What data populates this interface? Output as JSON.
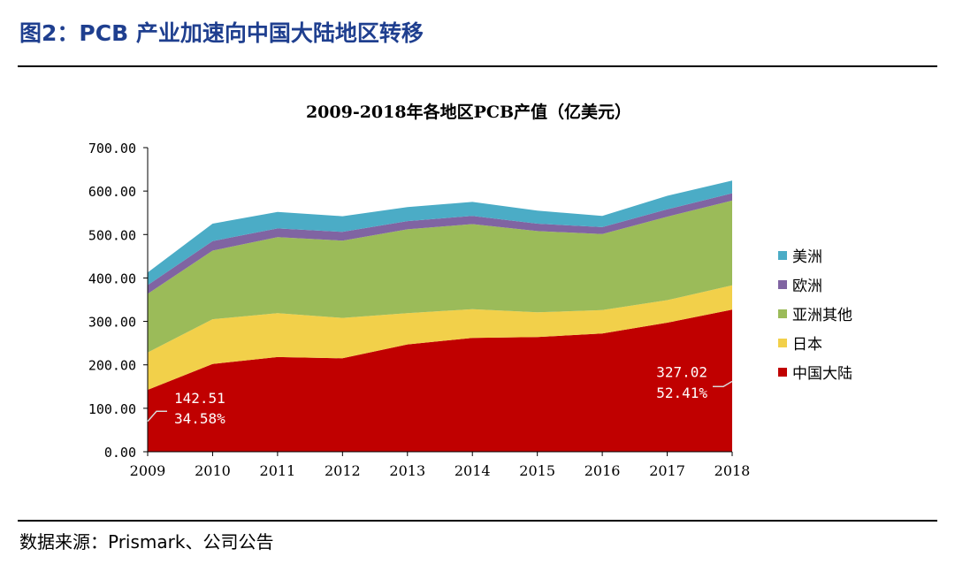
{
  "figure": {
    "title": "图2：PCB 产业加速向中国大陆地区转移",
    "source": "数据来源：Prismark、公司公告"
  },
  "chart_data": {
    "type": "area",
    "stacked": true,
    "title": "2009-2018年各地区PCB产值（亿美元）",
    "xlabel": "",
    "ylabel": "",
    "x": [
      "2009",
      "2010",
      "2011",
      "2012",
      "2013",
      "2014",
      "2015",
      "2016",
      "2017",
      "2018"
    ],
    "ylim": [
      0,
      700
    ],
    "yticks": [
      "0.00",
      "100.00",
      "200.00",
      "300.00",
      "400.00",
      "500.00",
      "600.00",
      "700.00"
    ],
    "legend_position": "right",
    "series": [
      {
        "name": "中国大陆",
        "color": "#c00000",
        "values": [
          142.51,
          202,
          218,
          215,
          247,
          262,
          264,
          272,
          297,
          327.02
        ]
      },
      {
        "name": "日本",
        "color": "#f2d04a",
        "values": [
          86,
          103,
          101,
          93,
          72,
          66,
          57,
          54,
          52,
          56
        ]
      },
      {
        "name": "亚洲其他",
        "color": "#9bbb59",
        "values": [
          135,
          158,
          175,
          178,
          193,
          196,
          187,
          175,
          192,
          195
        ]
      },
      {
        "name": "欧洲",
        "color": "#8064a2",
        "values": [
          20,
          22,
          20,
          20,
          19,
          19,
          17,
          16,
          17,
          17
        ]
      },
      {
        "name": "美洲",
        "color": "#4bacc6",
        "values": [
          29,
          40,
          38,
          36,
          32,
          32,
          30,
          26,
          31,
          29
        ]
      }
    ],
    "annotations": [
      {
        "x": "2009",
        "value_label": "142.51",
        "share_label": "34.58%"
      },
      {
        "x": "2018",
        "value_label": "327.02",
        "share_label": "52.41%"
      }
    ]
  }
}
